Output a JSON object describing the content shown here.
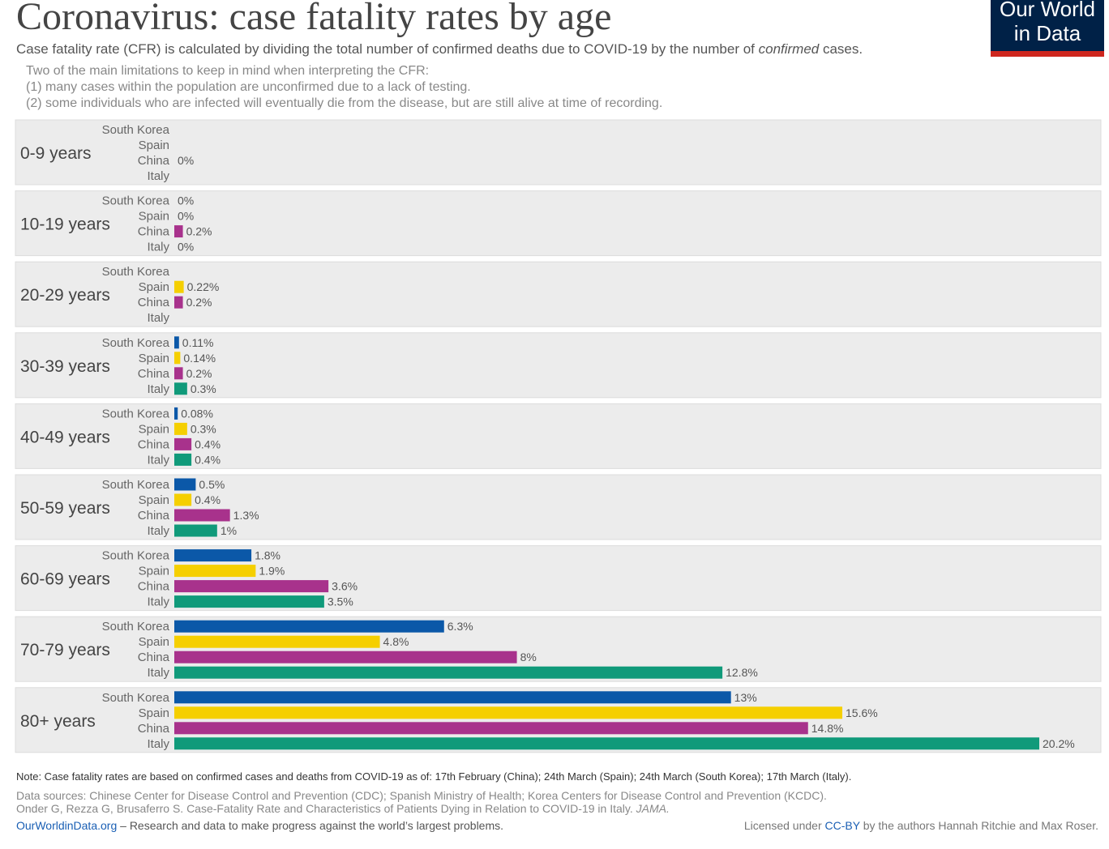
{
  "chart_data": {
    "type": "bar",
    "orientation": "horizontal",
    "title": "Coronavirus: case fatality rates by age",
    "subtitle": [
      "Case fatality rate (CFR) is calculated by dividing the total number of confirmed deaths due to COVID-19 by the number of ",
      "confirmed",
      " cases."
    ],
    "notes": [
      "Two of the main limitations to keep in mind when interpreting the CFR:",
      "(1) many cases within the population are unconfirmed due to a lack of testing.",
      "(2) some individuals who are infected will eventually die from the disease, but are still alive at time of recording."
    ],
    "logo": [
      "Our World",
      "in Data"
    ],
    "categories": [
      "0-9 years",
      "10-19 years",
      "20-29 years",
      "30-39 years",
      "40-49 years",
      "50-59 years",
      "60-69 years",
      "70-79 years",
      "80+ years"
    ],
    "series": [
      {
        "name": "South Korea",
        "color": "#0b58a8",
        "values": [
          null,
          0,
          null,
          0.11,
          0.08,
          0.5,
          1.8,
          6.3,
          13
        ],
        "value_labels": [
          null,
          "0%",
          null,
          "0.11%",
          "0.08%",
          "0.5%",
          "1.8%",
          "6.3%",
          "13%"
        ]
      },
      {
        "name": "Spain",
        "color": "#f5cf00",
        "values": [
          null,
          0,
          0.22,
          0.14,
          0.3,
          0.4,
          1.9,
          4.8,
          15.6
        ],
        "value_labels": [
          null,
          "0%",
          "0.22%",
          "0.14%",
          "0.3%",
          "0.4%",
          "1.9%",
          "4.8%",
          "15.6%"
        ]
      },
      {
        "name": "China",
        "color": "#a8328c",
        "values": [
          0,
          0.2,
          0.2,
          0.2,
          0.4,
          1.3,
          3.6,
          8,
          14.8
        ],
        "value_labels": [
          "0%",
          "0.2%",
          "0.2%",
          "0.2%",
          "0.4%",
          "1.3%",
          "3.6%",
          "8%",
          "14.8%"
        ]
      },
      {
        "name": "Italy",
        "color": "#109a7a",
        "values": [
          null,
          0,
          null,
          0.3,
          0.4,
          1,
          3.5,
          12.8,
          20.2
        ],
        "value_labels": [
          null,
          "0%",
          null,
          "0.3%",
          "0.4%",
          "1%",
          "3.5%",
          "12.8%",
          "20.2%"
        ]
      }
    ],
    "footnote": "Note: Case fatality rates are based on confirmed cases and deaths from COVID-19 as of: 17th February (China); 24th March (Spain); 24th March (South Korea); 17th March (Italy).",
    "sources": [
      "Data sources: Chinese Center for Disease Control and Prevention (CDC); Spanish Ministry of Health; Korea Centers for Disease Control and Prevention (KCDC).",
      "Onder G, Rezza G, Brusaferro S. Case-Fatality Rate and Characteristics of Patients Dying in Relation to COVID-19 in Italy. ",
      "JAMA."
    ],
    "footer_left": [
      "OurWorldinData.org",
      " – Research and data to make progress against the world’s largest problems."
    ],
    "footer_right": [
      "Licensed under ",
      "CC-BY",
      " by the authors Hannah Ritchie and Max Roser."
    ]
  }
}
